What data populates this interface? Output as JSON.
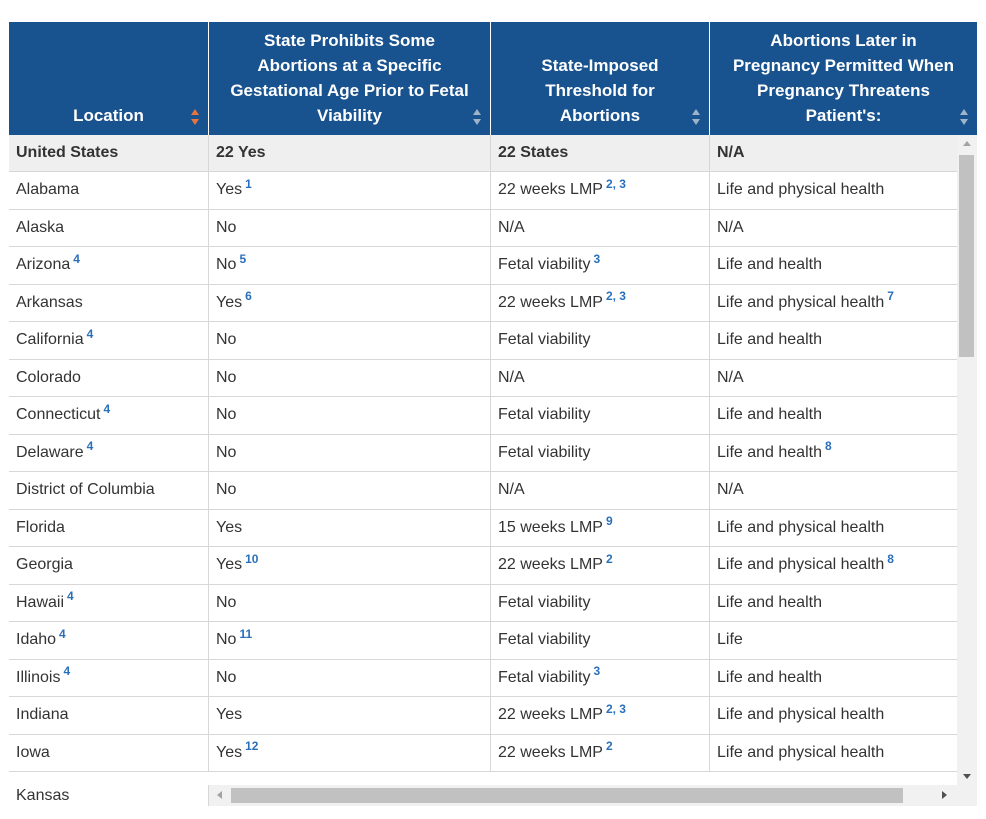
{
  "columns": [
    {
      "label": "Location",
      "sort_active": true
    },
    {
      "label": "State Prohibits Some Abortions at a Specific Gestational Age Prior to Fetal Viability",
      "sort_active": false
    },
    {
      "label": "State-Imposed Threshold for Abortions",
      "sort_active": false
    },
    {
      "label": "Abortions Later in Pregnancy Permitted When Pregnancy Threatens Patient's:",
      "sort_active": false
    }
  ],
  "summary_row": {
    "location": "United States",
    "prohibits": "22 Yes",
    "threshold": "22 States",
    "permitted": "N/A"
  },
  "rows": [
    {
      "location": "Alabama",
      "location_fn": "",
      "prohibits": "Yes",
      "prohibits_fn": "1",
      "threshold": "22 weeks LMP",
      "threshold_fn": "2, 3",
      "permitted": "Life and physical health",
      "permitted_fn": ""
    },
    {
      "location": "Alaska",
      "location_fn": "",
      "prohibits": "No",
      "prohibits_fn": "",
      "threshold": "N/A",
      "threshold_fn": "",
      "permitted": "N/A",
      "permitted_fn": ""
    },
    {
      "location": "Arizona",
      "location_fn": "4",
      "prohibits": "No",
      "prohibits_fn": "5",
      "threshold": "Fetal viability",
      "threshold_fn": "3",
      "permitted": "Life and health",
      "permitted_fn": ""
    },
    {
      "location": "Arkansas",
      "location_fn": "",
      "prohibits": "Yes",
      "prohibits_fn": "6",
      "threshold": "22 weeks LMP",
      "threshold_fn": "2, 3",
      "permitted": "Life and physical health",
      "permitted_fn": "7"
    },
    {
      "location": "California",
      "location_fn": "4",
      "prohibits": "No",
      "prohibits_fn": "",
      "threshold": "Fetal viability",
      "threshold_fn": "",
      "permitted": "Life and health",
      "permitted_fn": ""
    },
    {
      "location": "Colorado",
      "location_fn": "",
      "prohibits": "No",
      "prohibits_fn": "",
      "threshold": "N/A",
      "threshold_fn": "",
      "permitted": "N/A",
      "permitted_fn": ""
    },
    {
      "location": "Connecticut",
      "location_fn": "4",
      "prohibits": "No",
      "prohibits_fn": "",
      "threshold": "Fetal viability",
      "threshold_fn": "",
      "permitted": "Life and health",
      "permitted_fn": ""
    },
    {
      "location": "Delaware",
      "location_fn": "4",
      "prohibits": "No",
      "prohibits_fn": "",
      "threshold": "Fetal viability",
      "threshold_fn": "",
      "permitted": "Life and health",
      "permitted_fn": "8"
    },
    {
      "location": "District of Columbia",
      "location_fn": "",
      "prohibits": "No",
      "prohibits_fn": "",
      "threshold": "N/A",
      "threshold_fn": "",
      "permitted": "N/A",
      "permitted_fn": ""
    },
    {
      "location": "Florida",
      "location_fn": "",
      "prohibits": "Yes",
      "prohibits_fn": "",
      "threshold": "15 weeks LMP",
      "threshold_fn": "9",
      "permitted": "Life and physical health",
      "permitted_fn": ""
    },
    {
      "location": "Georgia",
      "location_fn": "",
      "prohibits": "Yes",
      "prohibits_fn": "10",
      "threshold": "22 weeks LMP",
      "threshold_fn": "2",
      "permitted": "Life and physical health",
      "permitted_fn": "8"
    },
    {
      "location": "Hawaii",
      "location_fn": "4",
      "prohibits": "No",
      "prohibits_fn": "",
      "threshold": "Fetal viability",
      "threshold_fn": "",
      "permitted": "Life and health",
      "permitted_fn": ""
    },
    {
      "location": "Idaho",
      "location_fn": "4",
      "prohibits": "No",
      "prohibits_fn": "11",
      "threshold": "Fetal viability",
      "threshold_fn": "",
      "permitted": "Life",
      "permitted_fn": ""
    },
    {
      "location": "Illinois",
      "location_fn": "4",
      "prohibits": "No",
      "prohibits_fn": "",
      "threshold": "Fetal viability",
      "threshold_fn": "3",
      "permitted": "Life and health",
      "permitted_fn": ""
    },
    {
      "location": "Indiana",
      "location_fn": "",
      "prohibits": "Yes",
      "prohibits_fn": "",
      "threshold": "22 weeks LMP",
      "threshold_fn": "2, 3",
      "permitted": "Life and physical health",
      "permitted_fn": ""
    },
    {
      "location": "Iowa",
      "location_fn": "",
      "prohibits": "Yes",
      "prohibits_fn": "12",
      "threshold": "22 weeks LMP",
      "threshold_fn": "2",
      "permitted": "Life and physical health",
      "permitted_fn": ""
    }
  ],
  "partial_row": {
    "location": "Kansas"
  },
  "colors": {
    "header_bg": "#19538f",
    "footnote": "#2a6fba",
    "sort_active": "#e8743b",
    "summary_bg": "#efefef"
  }
}
